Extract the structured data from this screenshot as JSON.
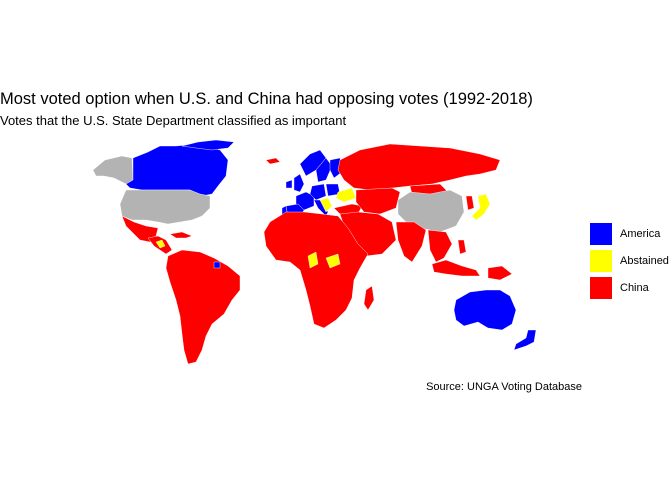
{
  "title": "Most voted option when U.S. and China had opposing votes (1992-2018)",
  "subtitle": "Votes that the U.S. State Department classified as important",
  "caption": "Source: UNGA Voting Database",
  "colors": {
    "America": "#0000ff",
    "Abstained": "#ffff00",
    "China": "#ff0000",
    "NoData": "#b3b3b3"
  },
  "legend": [
    {
      "label": "America",
      "color": "#0000ff"
    },
    {
      "label": "Abstained",
      "color": "#ffff00"
    },
    {
      "label": "China",
      "color": "#ff0000"
    }
  ],
  "regions": [
    {
      "name": "United States",
      "category": "NoData"
    },
    {
      "name": "Alaska",
      "category": "NoData"
    },
    {
      "name": "Canada",
      "category": "America"
    },
    {
      "name": "Greenland",
      "category": "America"
    },
    {
      "name": "Mexico",
      "category": "China"
    },
    {
      "name": "Central America",
      "category": "China"
    },
    {
      "name": "Cuba",
      "category": "China"
    },
    {
      "name": "Honduras",
      "category": "Abstained"
    },
    {
      "name": "French Guiana",
      "category": "America"
    },
    {
      "name": "South America",
      "category": "China"
    },
    {
      "name": "Iceland",
      "category": "China"
    },
    {
      "name": "Norway",
      "category": "America"
    },
    {
      "name": "Sweden",
      "category": "America"
    },
    {
      "name": "Finland",
      "category": "America"
    },
    {
      "name": "United Kingdom",
      "category": "America"
    },
    {
      "name": "Ireland",
      "category": "America"
    },
    {
      "name": "France",
      "category": "America"
    },
    {
      "name": "Spain",
      "category": "America"
    },
    {
      "name": "Portugal",
      "category": "America"
    },
    {
      "name": "Germany",
      "category": "America"
    },
    {
      "name": "Poland",
      "category": "America"
    },
    {
      "name": "Italy",
      "category": "America"
    },
    {
      "name": "Ukraine",
      "category": "Abstained"
    },
    {
      "name": "Balkans",
      "category": "Abstained"
    },
    {
      "name": "Turkey",
      "category": "China"
    },
    {
      "name": "Russia",
      "category": "China"
    },
    {
      "name": "Central Asia",
      "category": "China"
    },
    {
      "name": "China",
      "category": "NoData"
    },
    {
      "name": "Mongolia",
      "category": "China"
    },
    {
      "name": "Korea",
      "category": "China"
    },
    {
      "name": "Japan",
      "category": "Abstained"
    },
    {
      "name": "India",
      "category": "China"
    },
    {
      "name": "Middle East",
      "category": "China"
    },
    {
      "name": "Southeast Asia",
      "category": "China"
    },
    {
      "name": "Indonesia",
      "category": "China"
    },
    {
      "name": "Papua New Guinea",
      "category": "China"
    },
    {
      "name": "Philippines",
      "category": "China"
    },
    {
      "name": "Africa",
      "category": "China"
    },
    {
      "name": "Madagascar",
      "category": "China"
    },
    {
      "name": "Chad",
      "category": "Abstained"
    },
    {
      "name": "South Sudan",
      "category": "Abstained"
    },
    {
      "name": "Australia",
      "category": "America"
    },
    {
      "name": "New Zealand",
      "category": "America"
    }
  ]
}
